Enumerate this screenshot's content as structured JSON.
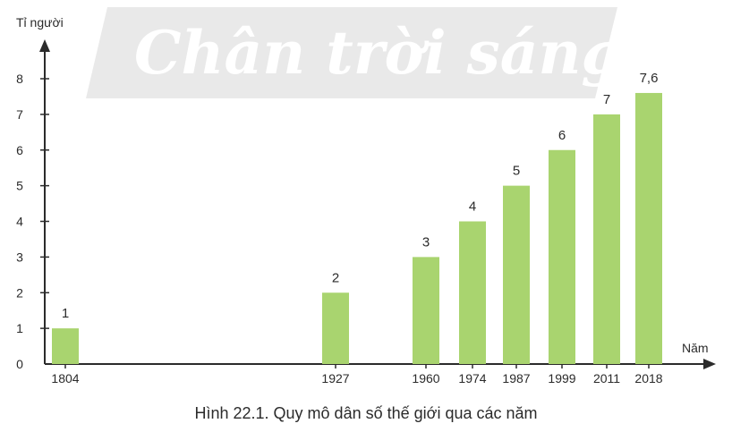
{
  "watermark": "Chân trời sáng tạo",
  "caption": "Hình 22.1. Quy mô dân số thế giới qua các năm",
  "chart_data": {
    "type": "bar",
    "title": "",
    "ylabel": "Tỉ người",
    "xlabel": "Năm",
    "categories": [
      "1804",
      "1927",
      "1960",
      "1974",
      "1987",
      "1999",
      "2011",
      "2018"
    ],
    "values": [
      1,
      2,
      3,
      4,
      5,
      6,
      7,
      7.6
    ],
    "data_labels": [
      "1",
      "2",
      "3",
      "4",
      "5",
      "6",
      "7",
      "7,6"
    ],
    "yticks": [
      "0",
      "1",
      "2",
      "3",
      "4",
      "5",
      "6",
      "7",
      "8"
    ],
    "ylim": [
      0,
      8
    ],
    "bar_color": "#a9d46f",
    "grid": false,
    "legend": "none"
  }
}
